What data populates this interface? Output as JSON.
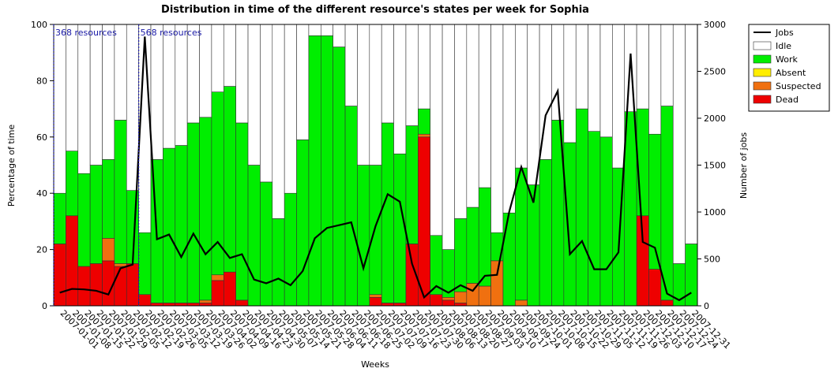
{
  "chart_data": {
    "type": "bar",
    "title": "Distribution in time of the different resource's states per week for Sophia",
    "x_label": "Weeks",
    "y_label": "Percentage of time",
    "y2_label": "Number of jobs",
    "categories": [
      "2007-01-01",
      "2007-01-08",
      "2007-01-15",
      "2007-01-22",
      "2007-01-29",
      "2007-02-05",
      "2007-02-12",
      "2007-02-19",
      "2007-02-26",
      "2007-03-05",
      "2007-03-12",
      "2007-03-19",
      "2007-03-26",
      "2007-04-02",
      "2007-04-09",
      "2007-04-16",
      "2007-04-23",
      "2007-04-30",
      "2007-05-07",
      "2007-05-14",
      "2007-05-21",
      "2007-05-28",
      "2007-06-04",
      "2007-06-11",
      "2007-06-18",
      "2007-06-25",
      "2007-07-02",
      "2007-07-09",
      "2007-07-16",
      "2007-07-23",
      "2007-07-30",
      "2007-08-06",
      "2007-08-13",
      "2007-08-20",
      "2007-08-27",
      "2007-09-03",
      "2007-09-10",
      "2007-09-17",
      "2007-09-24",
      "2007-10-01",
      "2007-10-08",
      "2007-10-15",
      "2007-10-22",
      "2007-10-29",
      "2007-11-05",
      "2007-11-12",
      "2007-11-19",
      "2007-11-26",
      "2007-12-03",
      "2007-12-10",
      "2007-12-17",
      "2007-12-24",
      "2007-12-31"
    ],
    "series": [
      {
        "name": "Jobs",
        "color": "#000000",
        "axis": "y2",
        "values": [
          140,
          180,
          175,
          160,
          120,
          400,
          440,
          2870,
          710,
          760,
          520,
          770,
          550,
          680,
          510,
          550,
          280,
          240,
          290,
          220,
          370,
          720,
          830,
          860,
          890,
          400,
          850,
          1190,
          1110,
          450,
          90,
          210,
          140,
          220,
          160,
          320,
          330,
          1000,
          1480,
          1100,
          2030,
          2290,
          550,
          690,
          390,
          390,
          570,
          2690,
          680,
          620,
          130,
          60,
          140
        ]
      },
      {
        "name": "Idle",
        "color": "#ffffff",
        "values": [
          60,
          45,
          53,
          50,
          48,
          34,
          59,
          74,
          48,
          44,
          43,
          35,
          33,
          24,
          22,
          35,
          50,
          56,
          69,
          60,
          41,
          4,
          4,
          8,
          29,
          50,
          50,
          35,
          46,
          36,
          30,
          75,
          80,
          69,
          65,
          58,
          74,
          67,
          51,
          57,
          48,
          34,
          42,
          30,
          38,
          40,
          51,
          31,
          30,
          39,
          29,
          85,
          78
        ]
      },
      {
        "name": "Work",
        "color": "#00ee00",
        "values": [
          18,
          23,
          33,
          35,
          28,
          51,
          26,
          22,
          51,
          55,
          56,
          64,
          65,
          65,
          66,
          63,
          50,
          44,
          31,
          40,
          59,
          96,
          96,
          92,
          71,
          50,
          46,
          64,
          53,
          42,
          9,
          21,
          17,
          26,
          27,
          35,
          10,
          33,
          47,
          43,
          52,
          66,
          58,
          70,
          62,
          60,
          49,
          69,
          38,
          48,
          69,
          15,
          22
        ]
      },
      {
        "name": "Absent",
        "color": "#ffee00",
        "values": [
          0,
          0,
          0,
          0,
          0,
          0,
          0,
          0,
          0,
          0,
          0,
          0,
          0,
          0,
          0,
          0,
          0,
          0,
          0,
          0,
          0,
          0,
          0,
          0,
          0,
          0,
          0,
          0,
          0,
          0,
          0,
          0,
          0,
          0,
          0,
          0,
          0,
          0,
          0,
          0,
          0,
          0,
          0,
          0,
          0,
          0,
          0,
          0,
          0,
          0,
          0,
          0,
          0
        ]
      },
      {
        "name": "Suspected",
        "color": "#f07010",
        "values": [
          0,
          0,
          0,
          0,
          8,
          1,
          0,
          0,
          0,
          0,
          0,
          0,
          1,
          2,
          0,
          0,
          0,
          0,
          0,
          0,
          0,
          0,
          0,
          0,
          0,
          0,
          1,
          0,
          0,
          0,
          1,
          0,
          1,
          4,
          8,
          7,
          16,
          0,
          2,
          0,
          0,
          0,
          0,
          0,
          0,
          0,
          0,
          0,
          0,
          0,
          0,
          0,
          0
        ]
      },
      {
        "name": "Dead",
        "color": "#ee0000",
        "values": [
          22,
          32,
          14,
          15,
          16,
          14,
          15,
          4,
          1,
          1,
          1,
          1,
          1,
          9,
          12,
          2,
          0,
          0,
          0,
          0,
          0,
          0,
          0,
          0,
          0,
          0,
          3,
          1,
          1,
          22,
          60,
          4,
          2,
          1,
          0,
          0,
          0,
          0,
          0,
          0,
          0,
          0,
          0,
          0,
          0,
          0,
          0,
          0,
          32,
          13,
          2,
          0,
          0
        ]
      }
    ],
    "annotations": [
      {
        "text": "368 resources",
        "category": "2007-01-01"
      },
      {
        "text": "568 resources",
        "category": "2007-02-19"
      }
    ],
    "ylim": [
      0,
      100
    ],
    "yticks": [
      0,
      20,
      40,
      60,
      80,
      100
    ],
    "y2lim": [
      0,
      3000
    ],
    "y2ticks": [
      0,
      500,
      1000,
      1500,
      2000,
      2500,
      3000
    ],
    "legend": "outside-right"
  }
}
